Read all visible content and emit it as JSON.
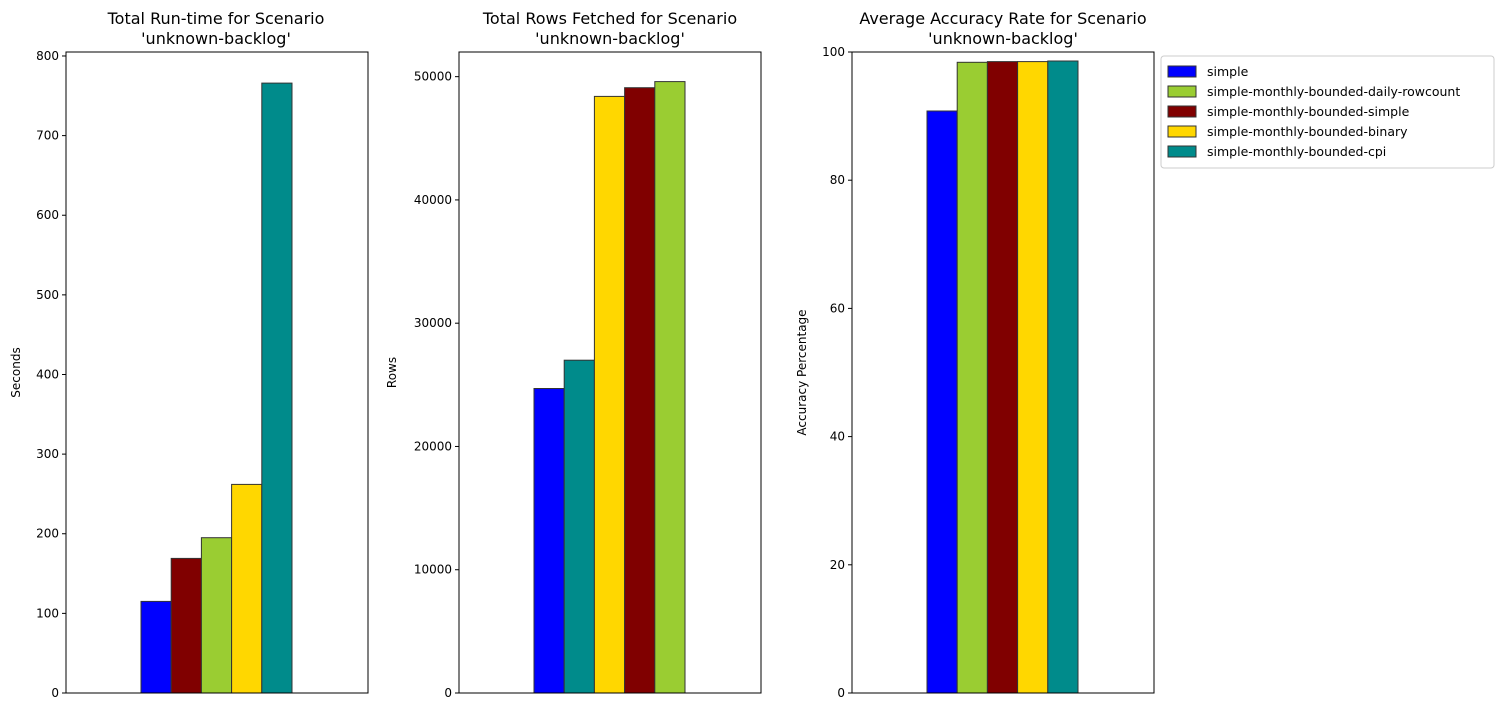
{
  "colors": {
    "simple": "#0000ff",
    "simple-monthly-bounded-daily-rowcount": "#9acd32",
    "simple-monthly-bounded-simple": "#800000",
    "simple-monthly-bounded-binary": "#ffd700",
    "simple-monthly-bounded-cpi": "#008b8b"
  },
  "legend": {
    "placement": "outside-right",
    "entries": [
      "simple",
      "simple-monthly-bounded-daily-rowcount",
      "simple-monthly-bounded-simple",
      "simple-monthly-bounded-binary",
      "simple-monthly-bounded-cpi"
    ]
  },
  "chart_data": [
    {
      "type": "bar",
      "title": [
        "Total Run-time for Scenario",
        "'unknown-backlog'"
      ],
      "xlabel": "",
      "ylabel": "Seconds",
      "ylim": [
        0,
        805
      ],
      "yticks": [
        "0",
        "100",
        "200",
        "300",
        "400",
        "500",
        "600",
        "700",
        "800"
      ],
      "ytick_values": [
        0,
        100,
        200,
        300,
        400,
        500,
        600,
        700,
        800
      ],
      "grid": false,
      "series": [
        {
          "name": "simple",
          "value": 115
        },
        {
          "name": "simple-monthly-bounded-simple",
          "value": 169
        },
        {
          "name": "simple-monthly-bounded-daily-rowcount",
          "value": 195
        },
        {
          "name": "simple-monthly-bounded-binary",
          "value": 262
        },
        {
          "name": "simple-monthly-bounded-cpi",
          "value": 766
        }
      ]
    },
    {
      "type": "bar",
      "title": [
        "Total Rows Fetched for Scenario",
        "'unknown-backlog'"
      ],
      "xlabel": "",
      "ylabel": "Rows",
      "ylim": [
        0,
        52000
      ],
      "yticks": [
        "0",
        "10000",
        "20000",
        "30000",
        "40000",
        "50000"
      ],
      "ytick_values": [
        0,
        10000,
        20000,
        30000,
        40000,
        50000
      ],
      "grid": false,
      "series": [
        {
          "name": "simple",
          "value": 24700
        },
        {
          "name": "simple-monthly-bounded-cpi",
          "value": 27000
        },
        {
          "name": "simple-monthly-bounded-binary",
          "value": 48400
        },
        {
          "name": "simple-monthly-bounded-simple",
          "value": 49100
        },
        {
          "name": "simple-monthly-bounded-daily-rowcount",
          "value": 49600
        }
      ]
    },
    {
      "type": "bar",
      "title": [
        "Average Accuracy Rate for Scenario",
        "'unknown-backlog'"
      ],
      "xlabel": "",
      "ylabel": "Accuracy Percentage",
      "ylim": [
        0,
        100
      ],
      "yticks": [
        "0",
        "20",
        "40",
        "60",
        "80",
        "100"
      ],
      "ytick_values": [
        0,
        20,
        40,
        60,
        80,
        100
      ],
      "grid": false,
      "series": [
        {
          "name": "simple",
          "value": 90.8
        },
        {
          "name": "simple-monthly-bounded-daily-rowcount",
          "value": 98.4
        },
        {
          "name": "simple-monthly-bounded-simple",
          "value": 98.5
        },
        {
          "name": "simple-monthly-bounded-binary",
          "value": 98.5
        },
        {
          "name": "simple-monthly-bounded-cpi",
          "value": 98.6
        }
      ]
    }
  ]
}
